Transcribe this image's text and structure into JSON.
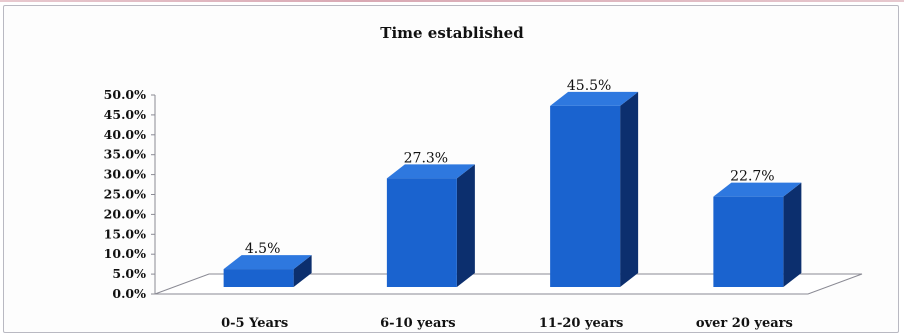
{
  "chart_data": {
    "type": "bar",
    "title": "Time established",
    "categories": [
      "0-5 Years",
      "6-10 years",
      "11-20 years",
      "over 20 years"
    ],
    "values": [
      4.5,
      27.3,
      45.5,
      22.7
    ],
    "value_labels": [
      "4.5%",
      "27.3%",
      "45.5%",
      "22.7%"
    ],
    "ylim": [
      0,
      50
    ],
    "yticks": [
      0,
      5,
      10,
      15,
      20,
      25,
      30,
      35,
      40,
      45,
      50
    ],
    "ytick_labels": [
      "0.0%",
      "5.0%",
      "10.0%",
      "15.0%",
      "20.0%",
      "25.0%",
      "30.0%",
      "35.0%",
      "40.0%",
      "45.0%",
      "50.0%"
    ],
    "xlabel": "",
    "ylabel": "",
    "grid": false,
    "style": "3d-column",
    "colors": {
      "front": "#1a63cf",
      "side": "#0c2f6e",
      "top": "#2e78df"
    }
  }
}
